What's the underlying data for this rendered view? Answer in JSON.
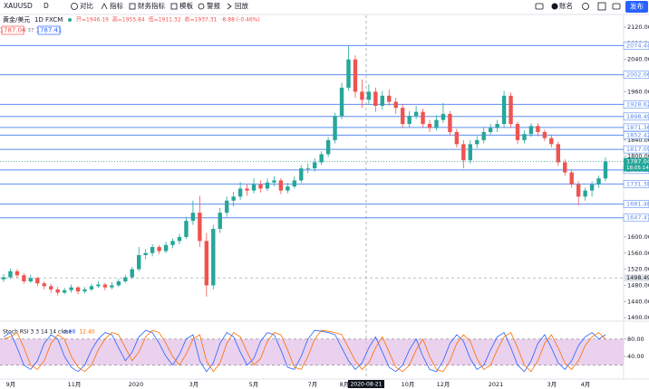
{
  "toolbar": {
    "symbol": "XAUUSD",
    "interval": "D",
    "items": [
      "对比",
      "指标",
      "财务指标",
      "模板",
      "警报",
      "回放"
    ],
    "account": "账名",
    "publish": "发布"
  },
  "legend": {
    "name": "黄金/美元",
    "interval": "1D",
    "source": "FXCM",
    "ohlc": [
      "开=1946.19",
      "高=1955.84",
      "低=1911.32",
      "收=1937.31"
    ],
    "change": "-8.88 (-0.46%)",
    "bid": "1787.04",
    "spread": "37",
    "ask": "1787.41"
  },
  "chart_data": {
    "type": "candlestick",
    "up_color": "#26a69a",
    "down_color": "#ef5350",
    "ylim": [
      1398,
      2138
    ],
    "yticks": [
      {
        "value": 1400,
        "label": "1400.00"
      },
      {
        "value": 1440,
        "label": "1440.00"
      },
      {
        "value": 1480,
        "label": "1480.00"
      },
      {
        "value": 1520,
        "label": "1520.00"
      },
      {
        "value": 1560,
        "label": "1560.00"
      },
      {
        "value": 1600,
        "label": "1600.00"
      },
      {
        "value": 1680,
        "label": "1680.00"
      },
      {
        "value": 1800,
        "label": "1800.00"
      },
      {
        "value": 1840,
        "label": "1840.00"
      },
      {
        "value": 1960,
        "label": "1960.00"
      },
      {
        "value": 2040,
        "label": "2040.00"
      },
      {
        "value": 2080,
        "label": "2080.00"
      },
      {
        "value": 2120,
        "label": "2120.00"
      }
    ],
    "x_labels": [
      "9月",
      "11月",
      "2020",
      "3月",
      "5月",
      "7月",
      "8月",
      "10月",
      "12月",
      "2021",
      "3月",
      "4月"
    ],
    "crosshair_label": "2020-08-21",
    "levels": [
      2074.44,
      2002.06,
      1928.62,
      1898.49,
      1871.36,
      1852.42,
      1817.09,
      1766.11,
      1731.38,
      1681.48,
      1647.47
    ],
    "level_color": "#5b8def",
    "dashed_level": 1498.49,
    "last_price": 1787.04,
    "countdown": "18:05:14",
    "open": [
      1495,
      1500,
      1515,
      1505,
      1490,
      1498,
      1485,
      1478,
      1470,
      1462,
      1468,
      1475,
      1465,
      1470,
      1478,
      1482,
      1475,
      1480,
      1490,
      1500,
      1520,
      1555,
      1560,
      1575,
      1565,
      1580,
      1590,
      1600,
      1640,
      1660,
      1590,
      1480,
      1620,
      1660,
      1690,
      1700,
      1720,
      1715,
      1730,
      1720,
      1735,
      1740,
      1715,
      1725,
      1740,
      1770,
      1770,
      1785,
      1805,
      1840,
      1900,
      1970,
      2040,
      1960,
      1940,
      1960,
      1925,
      1950,
      1935,
      1920,
      1880,
      1900,
      1910,
      1880,
      1870,
      1890,
      1905,
      1860,
      1830,
      1790,
      1830,
      1840,
      1860,
      1870,
      1880,
      1950,
      1880,
      1840,
      1855,
      1875,
      1860,
      1845,
      1830,
      1785,
      1760,
      1730,
      1700,
      1715,
      1730,
      1745
    ],
    "high": [
      1508,
      1522,
      1520,
      1510,
      1506,
      1502,
      1490,
      1484,
      1476,
      1474,
      1482,
      1478,
      1476,
      1484,
      1490,
      1486,
      1488,
      1496,
      1506,
      1526,
      1575,
      1570,
      1582,
      1580,
      1588,
      1596,
      1608,
      1650,
      1690,
      1702,
      1610,
      1630,
      1672,
      1700,
      1712,
      1736,
      1730,
      1745,
      1740,
      1745,
      1750,
      1746,
      1734,
      1750,
      1778,
      1782,
      1795,
      1812,
      1848,
      1908,
      1982,
      2075,
      2050,
      1990,
      1978,
      1970,
      1962,
      1965,
      1945,
      1930,
      1912,
      1925,
      1918,
      1890,
      1902,
      1932,
      1912,
      1868,
      1840,
      1840,
      1850,
      1872,
      1880,
      1890,
      1962,
      1958,
      1886,
      1864,
      1882,
      1882,
      1866,
      1852,
      1836,
      1792,
      1766,
      1738,
      1722,
      1738,
      1752,
      1797
    ],
    "low": [
      1488,
      1496,
      1498,
      1484,
      1486,
      1478,
      1470,
      1462,
      1455,
      1458,
      1462,
      1458,
      1460,
      1466,
      1474,
      1468,
      1470,
      1476,
      1486,
      1496,
      1515,
      1545,
      1552,
      1558,
      1560,
      1572,
      1582,
      1595,
      1630,
      1575,
      1452,
      1470,
      1610,
      1650,
      1676,
      1692,
      1702,
      1708,
      1710,
      1714,
      1726,
      1706,
      1708,
      1720,
      1734,
      1758,
      1762,
      1778,
      1798,
      1832,
      1892,
      1962,
      1945,
      1920,
      1930,
      1910,
      1915,
      1925,
      1905,
      1870,
      1872,
      1892,
      1872,
      1860,
      1864,
      1882,
      1852,
      1822,
      1770,
      1782,
      1820,
      1832,
      1852,
      1860,
      1872,
      1870,
      1830,
      1832,
      1848,
      1850,
      1838,
      1822,
      1776,
      1752,
      1722,
      1678,
      1690,
      1700,
      1722,
      1738
    ],
    "close": [
      1500,
      1515,
      1505,
      1490,
      1498,
      1485,
      1478,
      1470,
      1462,
      1468,
      1475,
      1465,
      1470,
      1478,
      1482,
      1475,
      1480,
      1490,
      1500,
      1520,
      1555,
      1560,
      1575,
      1565,
      1580,
      1590,
      1600,
      1640,
      1660,
      1590,
      1480,
      1620,
      1660,
      1690,
      1700,
      1720,
      1715,
      1730,
      1720,
      1735,
      1740,
      1715,
      1725,
      1740,
      1770,
      1770,
      1785,
      1805,
      1840,
      1900,
      1970,
      2040,
      1960,
      1940,
      1960,
      1925,
      1950,
      1935,
      1920,
      1880,
      1900,
      1910,
      1880,
      1870,
      1890,
      1905,
      1860,
      1830,
      1790,
      1830,
      1840,
      1860,
      1870,
      1880,
      1950,
      1880,
      1840,
      1855,
      1875,
      1860,
      1845,
      1830,
      1785,
      1760,
      1730,
      1700,
      1715,
      1730,
      1745,
      1787
    ]
  },
  "indicator": {
    "type": "line",
    "title": "Stoch RSI 3 3 14 14 close",
    "ylim": [
      -10,
      115
    ],
    "yticks": [
      {
        "value": 80,
        "label": "80.00"
      },
      {
        "value": 40,
        "label": "40.00"
      }
    ],
    "band": [
      20,
      80
    ],
    "band_color": "#e1bee7",
    "series": [
      {
        "name": "4.18",
        "color": "#2962ff",
        "values": [
          85,
          95,
          60,
          20,
          10,
          30,
          70,
          90,
          80,
          40,
          15,
          5,
          20,
          55,
          80,
          95,
          90,
          60,
          30,
          50,
          85,
          100,
          95,
          70,
          40,
          20,
          45,
          80,
          90,
          30,
          5,
          25,
          70,
          95,
          85,
          50,
          20,
          35,
          75,
          95,
          90,
          55,
          15,
          10,
          40,
          80,
          100,
          98,
          95,
          90,
          60,
          30,
          10,
          25,
          60,
          85,
          50,
          15,
          5,
          20,
          55,
          80,
          40,
          10,
          5,
          30,
          70,
          90,
          75,
          35,
          10,
          20,
          55,
          85,
          95,
          60,
          20,
          5,
          30,
          70,
          90,
          60,
          25,
          10,
          30,
          65,
          85,
          95,
          80,
          90
        ]
      },
      {
        "name": "12.40",
        "color": "#ff6d00",
        "values": [
          80,
          85,
          95,
          60,
          20,
          10,
          30,
          70,
          90,
          80,
          40,
          15,
          5,
          20,
          55,
          80,
          95,
          90,
          60,
          30,
          50,
          85,
          100,
          95,
          70,
          40,
          20,
          45,
          80,
          90,
          30,
          5,
          25,
          70,
          95,
          85,
          50,
          20,
          35,
          75,
          95,
          90,
          55,
          15,
          10,
          40,
          80,
          100,
          98,
          95,
          90,
          60,
          30,
          10,
          25,
          60,
          85,
          50,
          15,
          5,
          20,
          55,
          80,
          40,
          10,
          5,
          30,
          70,
          90,
          75,
          35,
          10,
          20,
          55,
          85,
          95,
          60,
          20,
          5,
          30,
          70,
          90,
          60,
          25,
          10,
          30,
          65,
          85,
          95,
          80
        ]
      }
    ]
  }
}
